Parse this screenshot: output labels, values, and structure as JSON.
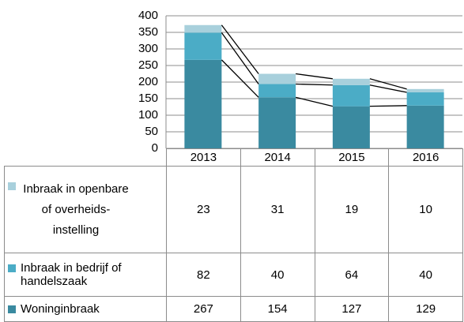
{
  "chart_data": {
    "type": "bar",
    "stacked": true,
    "categories": [
      "2013",
      "2014",
      "2015",
      "2016"
    ],
    "series": [
      {
        "name": "Woninginbraak",
        "color": "#3a8aa0",
        "values": [
          267,
          154,
          127,
          129
        ]
      },
      {
        "name": "Inbraak in bedrijf of handelszaak",
        "color": "#4bacc6",
        "values": [
          82,
          40,
          64,
          40
        ]
      },
      {
        "name": "Inbraak in openbare of overheids-instelling",
        "color": "#a8d0dc",
        "values": [
          23,
          31,
          19,
          10
        ]
      }
    ],
    "ylim": [
      0,
      400
    ],
    "yticks": [
      0,
      50,
      100,
      150,
      200,
      250,
      300,
      350,
      400
    ],
    "grid": true
  }
}
